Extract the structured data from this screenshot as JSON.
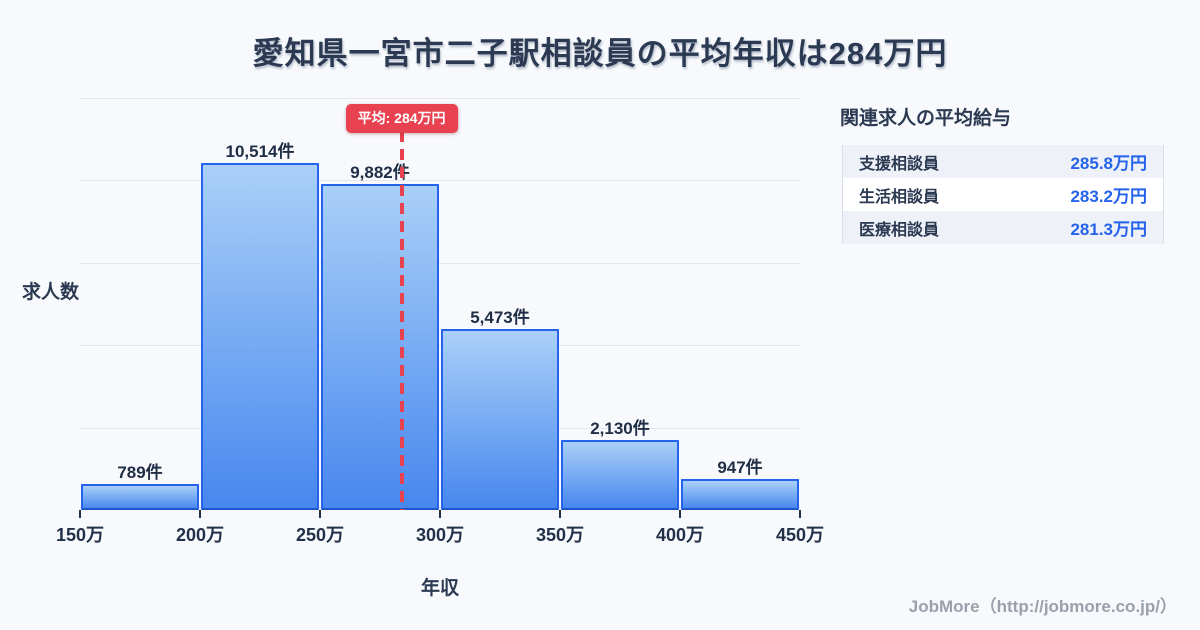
{
  "page": {
    "title": "愛知県一宮市二子駅相談員の平均年収は284万円",
    "background_color": "#f7f9fc",
    "title_color": "#2b3a52",
    "footer_credit": "JobMore（http://jobmore.co.jp/）"
  },
  "chart_data": {
    "type": "bar",
    "title": "愛知県一宮市二子駅相談員の平均年収は284万円",
    "xlabel": "年収",
    "ylabel": "求人数",
    "x_axis_tick_labels": [
      "150万",
      "200万",
      "250万",
      "300万",
      "350万",
      "400万",
      "450万"
    ],
    "x_range_man_yen": [
      150,
      450
    ],
    "bin_width_man_yen": 50,
    "bins": [
      {
        "range": "150万-200万",
        "value": 789,
        "label": "789件"
      },
      {
        "range": "200万-250万",
        "value": 10514,
        "label": "10,514件"
      },
      {
        "range": "250万-300万",
        "value": 9882,
        "label": "9,882件"
      },
      {
        "range": "300万-350万",
        "value": 5473,
        "label": "5,473件"
      },
      {
        "range": "350万-400万",
        "value": 2130,
        "label": "2,130件"
      },
      {
        "range": "400万-450万",
        "value": 947,
        "label": "947件"
      }
    ],
    "ylim": [
      0,
      12500
    ],
    "gridline_interval": 2500,
    "grid_on": true,
    "average_line": {
      "x_value_man_yen": 284,
      "label": "平均: 284万円",
      "color": "#e8414f"
    },
    "bar_style": {
      "fill_top": "#aad0f8",
      "fill_bottom": "#4787ee",
      "border": "#2563eb"
    }
  },
  "side_panel": {
    "heading": "関連求人の平均給与",
    "rows": [
      {
        "label": "支援相談員",
        "value": "285.8万円"
      },
      {
        "label": "生活相談員",
        "value": "283.2万円"
      },
      {
        "label": "医療相談員",
        "value": "281.3万円"
      }
    ],
    "value_color": "#2563eb"
  }
}
